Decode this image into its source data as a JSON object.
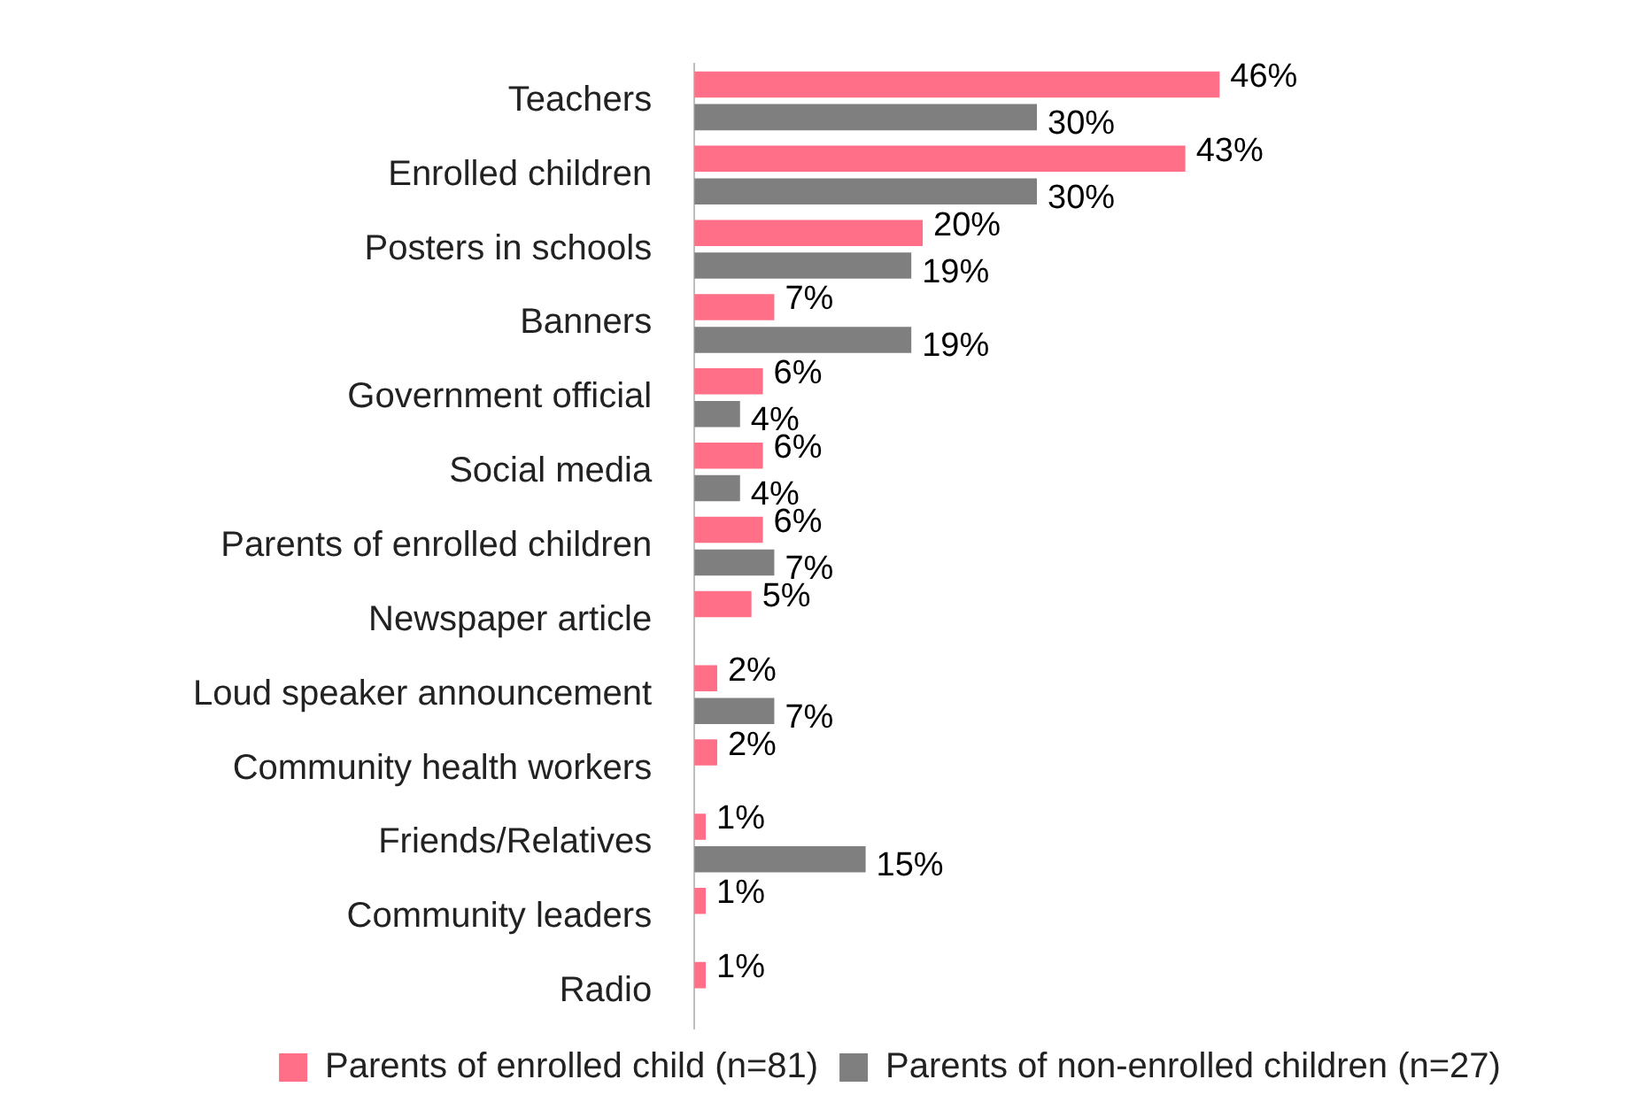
{
  "chart_data": {
    "type": "bar",
    "orientation": "horizontal",
    "legend": "bottom",
    "categories": [
      "Teachers",
      "Enrolled children",
      "Posters in schools",
      "Banners",
      "Government official",
      "Social media",
      "Parents of enrolled children",
      "Newspaper article",
      "Loud speaker announcement",
      "Community health workers",
      "Friends/Relatives",
      "Community leaders",
      "Radio"
    ],
    "series": [
      {
        "name": "Parents of enrolled child (n=81)",
        "color": "#ff6f87",
        "values": [
          46,
          43,
          20,
          7,
          6,
          6,
          6,
          5,
          2,
          2,
          1,
          1,
          1
        ],
        "value_labels": [
          "46%",
          "43%",
          "20%",
          "7%",
          "6%",
          "6%",
          "6%",
          "5%",
          "2%",
          "2%",
          "1%",
          "1%",
          "1%"
        ]
      },
      {
        "name": "Parents of non-enrolled children (n=27)",
        "color": "#7f7f7f",
        "values": [
          30,
          30,
          19,
          19,
          4,
          4,
          7,
          null,
          7,
          null,
          15,
          null,
          null
        ],
        "value_labels": [
          "30%",
          "30%",
          "19%",
          "19%",
          "4%",
          "4%",
          "7%",
          null,
          "7%",
          null,
          "15%",
          null,
          null
        ]
      }
    ]
  }
}
